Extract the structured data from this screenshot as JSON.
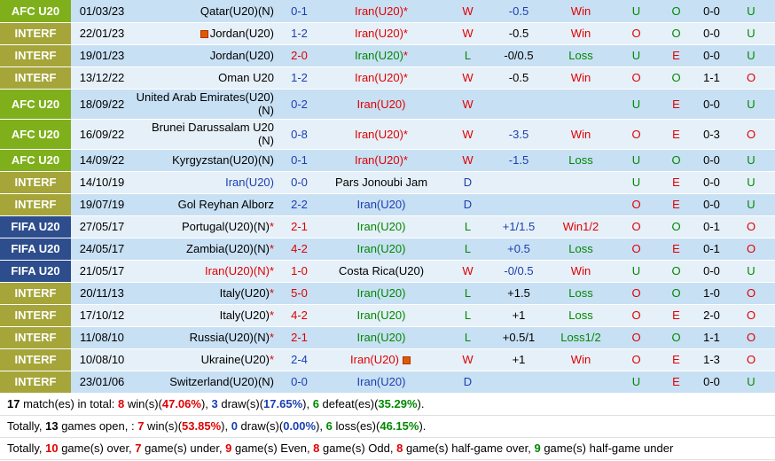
{
  "colors": {
    "afc_u20": "#7fb01c",
    "interf": "#a5a53a",
    "fifa_u20": "#2d4d8c",
    "win": "#e00000",
    "draw": "#1b3fb0",
    "loss": "#008800",
    "row_light": "#e6f0f8",
    "row_dark": "#c8e0f4"
  },
  "matches": [
    {
      "league": "AFC U20",
      "date": "01/03/23",
      "home": "Qatar(U20)(N)",
      "home_mark": "",
      "home_color": "dark",
      "score": "0-1",
      "score_color": "blue",
      "away": "Iran(U20)",
      "away_mark": "*",
      "away_color": "red",
      "res": "W",
      "res_color": "red",
      "hcp": "-0.5",
      "hcp_color": "blue",
      "hcp_res": "Win",
      "hcp_res_color": "red",
      "ou": "U",
      "ou_color": "green",
      "oe": "O",
      "oe_color": "green",
      "ht": "0-0",
      "htou": "U",
      "htou_color": "green",
      "home_flag": false,
      "away_flag": false
    },
    {
      "league": "INTERF",
      "date": "22/01/23",
      "home": "Jordan(U20)",
      "home_mark": "",
      "home_color": "dark",
      "score": "1-2",
      "score_color": "blue",
      "away": "Iran(U20)",
      "away_mark": "*",
      "away_color": "red",
      "res": "W",
      "res_color": "red",
      "hcp": "-0.5",
      "hcp_color": "dark",
      "hcp_res": "Win",
      "hcp_res_color": "red",
      "ou": "O",
      "ou_color": "red",
      "oe": "O",
      "oe_color": "green",
      "ht": "0-0",
      "htou": "U",
      "htou_color": "green",
      "home_flag": true,
      "away_flag": false
    },
    {
      "league": "INTERF",
      "date": "19/01/23",
      "home": "Jordan(U20)",
      "home_mark": "",
      "home_color": "dark",
      "score": "2-0",
      "score_color": "red",
      "away": "Iran(U20)",
      "away_mark": "*",
      "away_color": "green",
      "res": "L",
      "res_color": "green",
      "hcp": "-0/0.5",
      "hcp_color": "dark",
      "hcp_res": "Loss",
      "hcp_res_color": "green",
      "ou": "U",
      "ou_color": "green",
      "oe": "E",
      "oe_color": "red",
      "ht": "0-0",
      "htou": "U",
      "htou_color": "green",
      "home_flag": false,
      "away_flag": false
    },
    {
      "league": "INTERF",
      "date": "13/12/22",
      "home": "Oman U20",
      "home_mark": "",
      "home_color": "dark",
      "score": "1-2",
      "score_color": "blue",
      "away": "Iran(U20)",
      "away_mark": "*",
      "away_color": "red",
      "res": "W",
      "res_color": "red",
      "hcp": "-0.5",
      "hcp_color": "dark",
      "hcp_res": "Win",
      "hcp_res_color": "red",
      "ou": "O",
      "ou_color": "red",
      "oe": "O",
      "oe_color": "green",
      "ht": "1-1",
      "htou": "O",
      "htou_color": "red",
      "home_flag": false,
      "away_flag": false
    },
    {
      "league": "AFC U20",
      "date": "18/09/22",
      "home": "United Arab Emirates(U20)(N)",
      "home_mark": "",
      "home_color": "dark",
      "score": "0-2",
      "score_color": "blue",
      "away": "Iran(U20)",
      "away_mark": "",
      "away_color": "red",
      "res": "W",
      "res_color": "red",
      "hcp": "",
      "hcp_color": "dark",
      "hcp_res": "",
      "hcp_res_color": "red",
      "ou": "U",
      "ou_color": "green",
      "oe": "E",
      "oe_color": "red",
      "ht": "0-0",
      "htou": "U",
      "htou_color": "green",
      "home_flag": false,
      "away_flag": false
    },
    {
      "league": "AFC U20",
      "date": "16/09/22",
      "home": "Brunei Darussalam U20 (N)",
      "home_mark": "",
      "home_color": "dark",
      "score": "0-8",
      "score_color": "blue",
      "away": "Iran(U20)",
      "away_mark": "*",
      "away_color": "red",
      "res": "W",
      "res_color": "red",
      "hcp": "-3.5",
      "hcp_color": "blue",
      "hcp_res": "Win",
      "hcp_res_color": "red",
      "ou": "O",
      "ou_color": "red",
      "oe": "E",
      "oe_color": "red",
      "ht": "0-3",
      "htou": "O",
      "htou_color": "red",
      "home_flag": false,
      "away_flag": false
    },
    {
      "league": "AFC U20",
      "date": "14/09/22",
      "home": "Kyrgyzstan(U20)(N)",
      "home_mark": "",
      "home_color": "dark",
      "score": "0-1",
      "score_color": "blue",
      "away": "Iran(U20)",
      "away_mark": "*",
      "away_color": "red",
      "res": "W",
      "res_color": "red",
      "hcp": "-1.5",
      "hcp_color": "blue",
      "hcp_res": "Loss",
      "hcp_res_color": "green",
      "ou": "U",
      "ou_color": "green",
      "oe": "O",
      "oe_color": "green",
      "ht": "0-0",
      "htou": "U",
      "htou_color": "green",
      "home_flag": false,
      "away_flag": false
    },
    {
      "league": "INTERF",
      "date": "14/10/19",
      "home": "Iran(U20)",
      "home_mark": "",
      "home_color": "blue",
      "score": "0-0",
      "score_color": "blue",
      "away": "Pars Jonoubi Jam",
      "away_mark": "",
      "away_color": "dark",
      "res": "D",
      "res_color": "blue",
      "hcp": "",
      "hcp_color": "dark",
      "hcp_res": "",
      "hcp_res_color": "red",
      "ou": "U",
      "ou_color": "green",
      "oe": "E",
      "oe_color": "red",
      "ht": "0-0",
      "htou": "U",
      "htou_color": "green",
      "home_flag": false,
      "away_flag": false
    },
    {
      "league": "INTERF",
      "date": "19/07/19",
      "home": "Gol Reyhan Alborz",
      "home_mark": "",
      "home_color": "dark",
      "score": "2-2",
      "score_color": "blue",
      "away": "Iran(U20)",
      "away_mark": "",
      "away_color": "blue",
      "res": "D",
      "res_color": "blue",
      "hcp": "",
      "hcp_color": "dark",
      "hcp_res": "",
      "hcp_res_color": "red",
      "ou": "O",
      "ou_color": "red",
      "oe": "E",
      "oe_color": "red",
      "ht": "0-0",
      "htou": "U",
      "htou_color": "green",
      "home_flag": false,
      "away_flag": false
    },
    {
      "league": "FIFA U20",
      "date": "27/05/17",
      "home": "Portugal(U20)(N)",
      "home_mark": "*",
      "home_color": "dark",
      "score": "2-1",
      "score_color": "red",
      "away": "Iran(U20)",
      "away_mark": "",
      "away_color": "green",
      "res": "L",
      "res_color": "green",
      "hcp": "+1/1.5",
      "hcp_color": "blue",
      "hcp_res": "Win1/2",
      "hcp_res_color": "red",
      "ou": "O",
      "ou_color": "red",
      "oe": "O",
      "oe_color": "green",
      "ht": "0-1",
      "htou": "O",
      "htou_color": "red",
      "home_flag": false,
      "away_flag": false
    },
    {
      "league": "FIFA U20",
      "date": "24/05/17",
      "home": "Zambia(U20)(N)",
      "home_mark": "*",
      "home_color": "dark",
      "score": "4-2",
      "score_color": "red",
      "away": "Iran(U20)",
      "away_mark": "",
      "away_color": "green",
      "res": "L",
      "res_color": "green",
      "hcp": "+0.5",
      "hcp_color": "blue",
      "hcp_res": "Loss",
      "hcp_res_color": "green",
      "ou": "O",
      "ou_color": "red",
      "oe": "E",
      "oe_color": "red",
      "ht": "0-1",
      "htou": "O",
      "htou_color": "red",
      "home_flag": false,
      "away_flag": false
    },
    {
      "league": "FIFA U20",
      "date": "21/05/17",
      "home": "Iran(U20)(N)",
      "home_mark": "*",
      "home_color": "red",
      "score": "1-0",
      "score_color": "red",
      "away": "Costa Rica(U20)",
      "away_mark": "",
      "away_color": "dark",
      "res": "W",
      "res_color": "red",
      "hcp": "-0/0.5",
      "hcp_color": "blue",
      "hcp_res": "Win",
      "hcp_res_color": "red",
      "ou": "U",
      "ou_color": "green",
      "oe": "O",
      "oe_color": "green",
      "ht": "0-0",
      "htou": "U",
      "htou_color": "green",
      "home_flag": false,
      "away_flag": false
    },
    {
      "league": "INTERF",
      "date": "20/11/13",
      "home": "Italy(U20)",
      "home_mark": "*",
      "home_color": "dark",
      "score": "5-0",
      "score_color": "red",
      "away": "Iran(U20)",
      "away_mark": "",
      "away_color": "green",
      "res": "L",
      "res_color": "green",
      "hcp": "+1.5",
      "hcp_color": "dark",
      "hcp_res": "Loss",
      "hcp_res_color": "green",
      "ou": "O",
      "ou_color": "red",
      "oe": "O",
      "oe_color": "green",
      "ht": "1-0",
      "htou": "O",
      "htou_color": "red",
      "home_flag": false,
      "away_flag": false
    },
    {
      "league": "INTERF",
      "date": "17/10/12",
      "home": "Italy(U20)",
      "home_mark": "*",
      "home_color": "dark",
      "score": "4-2",
      "score_color": "red",
      "away": "Iran(U20)",
      "away_mark": "",
      "away_color": "green",
      "res": "L",
      "res_color": "green",
      "hcp": "+1",
      "hcp_color": "dark",
      "hcp_res": "Loss",
      "hcp_res_color": "green",
      "ou": "O",
      "ou_color": "red",
      "oe": "E",
      "oe_color": "red",
      "ht": "2-0",
      "htou": "O",
      "htou_color": "red",
      "home_flag": false,
      "away_flag": false
    },
    {
      "league": "INTERF",
      "date": "11/08/10",
      "home": "Russia(U20)(N)",
      "home_mark": "*",
      "home_color": "dark",
      "score": "2-1",
      "score_color": "red",
      "away": "Iran(U20)",
      "away_mark": "",
      "away_color": "green",
      "res": "L",
      "res_color": "green",
      "hcp": "+0.5/1",
      "hcp_color": "dark",
      "hcp_res": "Loss1/2",
      "hcp_res_color": "green",
      "ou": "O",
      "ou_color": "red",
      "oe": "O",
      "oe_color": "green",
      "ht": "1-1",
      "htou": "O",
      "htou_color": "red",
      "home_flag": false,
      "away_flag": false
    },
    {
      "league": "INTERF",
      "date": "10/08/10",
      "home": "Ukraine(U20)",
      "home_mark": "*",
      "home_color": "dark",
      "score": "2-4",
      "score_color": "blue",
      "away": "Iran(U20)",
      "away_mark": "",
      "away_color": "red",
      "res": "W",
      "res_color": "red",
      "hcp": "+1",
      "hcp_color": "dark",
      "hcp_res": "Win",
      "hcp_res_color": "red",
      "ou": "O",
      "ou_color": "red",
      "oe": "E",
      "oe_color": "red",
      "ht": "1-3",
      "htou": "O",
      "htou_color": "red",
      "home_flag": false,
      "away_flag": true
    },
    {
      "league": "INTERF",
      "date": "23/01/06",
      "home": "Switzerland(U20)(N)",
      "home_mark": "",
      "home_color": "dark",
      "score": "0-0",
      "score_color": "blue",
      "away": "Iran(U20)",
      "away_mark": "",
      "away_color": "blue",
      "res": "D",
      "res_color": "blue",
      "hcp": "",
      "hcp_color": "dark",
      "hcp_res": "",
      "hcp_res_color": "red",
      "ou": "U",
      "ou_color": "green",
      "oe": "E",
      "oe_color": "red",
      "ht": "0-0",
      "htou": "U",
      "htou_color": "green",
      "home_flag": false,
      "away_flag": false
    }
  ],
  "summary": {
    "line1": {
      "total": "17",
      "t1": " match(es) in total: ",
      "wins": "8",
      "t2": " win(s)(",
      "win_pct": "47.06%",
      "t3": "), ",
      "draws": "3",
      "t4": " draw(s)(",
      "draw_pct": "17.65%",
      "t5": "), ",
      "defeats": "6",
      "t6": " defeat(es)(",
      "defeat_pct": "35.29%",
      "t7": ")."
    },
    "line2": {
      "t0": "Totally, ",
      "open": "13",
      "t1": " games open, : ",
      "wins": "7",
      "t2": " win(s)(",
      "win_pct": "53.85%",
      "t3": "), ",
      "draws": "0",
      "t4": " draw(s)(",
      "draw_pct": "0.00%",
      "t5": "), ",
      "losses": "6",
      "t6": " loss(es)(",
      "loss_pct": "46.15%",
      "t7": ")."
    },
    "line3": {
      "t0": "Totally, ",
      "over": "10",
      "t1": " game(s) over, ",
      "under": "7",
      "t2": " game(s) under, ",
      "even": "9",
      "t3": " game(s) Even, ",
      "odd": "8",
      "t4": " game(s) Odd, ",
      "ht_over": "8",
      "t5": " game(s) half-game over, ",
      "ht_under": "9",
      "t6": " game(s) half-game under"
    }
  }
}
